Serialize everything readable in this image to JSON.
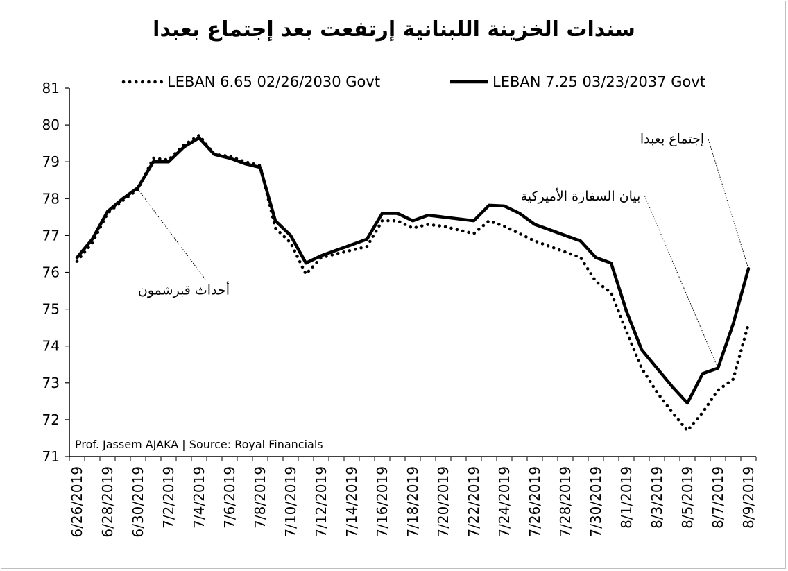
{
  "chart_data": {
    "type": "line",
    "title": "سندات الخزينة اللبنانية إرتفعت بعد إجتماع بعبدا",
    "source_note": "Prof. Jassem AJAKA | Source: Royal Financials",
    "ylim": [
      71,
      81
    ],
    "y_ticks": [
      "71",
      "72",
      "73",
      "74",
      "75",
      "76",
      "77",
      "78",
      "79",
      "80",
      "81"
    ],
    "x_tick_labels": [
      "6/26/2019",
      "6/28/2019",
      "6/30/2019",
      "7/2/2019",
      "7/4/2019",
      "7/6/2019",
      "7/8/2019",
      "7/10/2019",
      "7/12/2019",
      "7/14/2019",
      "7/16/2019",
      "7/18/2019",
      "7/20/2019",
      "7/22/2019",
      "7/24/2019",
      "7/26/2019",
      "7/28/2019",
      "7/30/2019",
      "8/1/2019",
      "8/3/2019",
      "8/5/2019",
      "8/7/2019",
      "8/9/2019"
    ],
    "x_start": "2019-06-26",
    "x_end": "2019-08-09",
    "legend_position": "top",
    "series": [
      {
        "name": "LEBAN 6.65 02/26/2030 Govt",
        "style": "dotted",
        "color": "#000000",
        "points": [
          [
            "2019-06-26",
            76.3
          ],
          [
            "2019-06-27",
            76.8
          ],
          [
            "2019-06-28",
            77.6
          ],
          [
            "2019-06-29",
            77.95
          ],
          [
            "2019-06-30",
            78.25
          ],
          [
            "2019-07-01",
            79.1
          ],
          [
            "2019-07-02",
            79.05
          ],
          [
            "2019-07-03",
            79.45
          ],
          [
            "2019-07-04",
            79.72
          ],
          [
            "2019-07-05",
            79.2
          ],
          [
            "2019-07-06",
            79.15
          ],
          [
            "2019-07-07",
            79.0
          ],
          [
            "2019-07-08",
            78.9
          ],
          [
            "2019-07-09",
            77.2
          ],
          [
            "2019-07-10",
            76.8
          ],
          [
            "2019-07-11",
            75.95
          ],
          [
            "2019-07-12",
            76.4
          ],
          [
            "2019-07-13",
            76.5
          ],
          [
            "2019-07-14",
            76.6
          ],
          [
            "2019-07-15",
            76.7
          ],
          [
            "2019-07-16",
            77.4
          ],
          [
            "2019-07-17",
            77.4
          ],
          [
            "2019-07-18",
            77.2
          ],
          [
            "2019-07-19",
            77.3
          ],
          [
            "2019-07-20",
            77.25
          ],
          [
            "2019-07-21",
            77.15
          ],
          [
            "2019-07-22",
            77.05
          ],
          [
            "2019-07-23",
            77.4
          ],
          [
            "2019-07-24",
            77.25
          ],
          [
            "2019-07-25",
            77.05
          ],
          [
            "2019-07-26",
            76.85
          ],
          [
            "2019-07-27",
            76.7
          ],
          [
            "2019-07-28",
            76.55
          ],
          [
            "2019-07-29",
            76.4
          ],
          [
            "2019-07-30",
            75.75
          ],
          [
            "2019-07-31",
            75.45
          ],
          [
            "2019-08-01",
            74.4
          ],
          [
            "2019-08-02",
            73.4
          ],
          [
            "2019-08-03",
            72.75
          ],
          [
            "2019-08-04",
            72.2
          ],
          [
            "2019-08-05",
            71.7
          ],
          [
            "2019-08-06",
            72.2
          ],
          [
            "2019-08-07",
            72.8
          ],
          [
            "2019-08-08",
            73.1
          ],
          [
            "2019-08-09",
            74.6
          ]
        ]
      },
      {
        "name": "LEBAN 7.25 03/23/2037 Govt",
        "style": "solid",
        "color": "#000000",
        "points": [
          [
            "2019-06-26",
            76.4
          ],
          [
            "2019-06-27",
            76.9
          ],
          [
            "2019-06-28",
            77.65
          ],
          [
            "2019-06-29",
            78.0
          ],
          [
            "2019-06-30",
            78.3
          ],
          [
            "2019-07-01",
            79.0
          ],
          [
            "2019-07-02",
            79.0
          ],
          [
            "2019-07-03",
            79.4
          ],
          [
            "2019-07-04",
            79.65
          ],
          [
            "2019-07-05",
            79.2
          ],
          [
            "2019-07-06",
            79.1
          ],
          [
            "2019-07-07",
            78.95
          ],
          [
            "2019-07-08",
            78.85
          ],
          [
            "2019-07-09",
            77.4
          ],
          [
            "2019-07-10",
            77.0
          ],
          [
            "2019-07-11",
            76.25
          ],
          [
            "2019-07-12",
            76.45
          ],
          [
            "2019-07-13",
            76.6
          ],
          [
            "2019-07-14",
            76.75
          ],
          [
            "2019-07-15",
            76.9
          ],
          [
            "2019-07-16",
            77.6
          ],
          [
            "2019-07-17",
            77.6
          ],
          [
            "2019-07-18",
            77.4
          ],
          [
            "2019-07-19",
            77.55
          ],
          [
            "2019-07-20",
            77.5
          ],
          [
            "2019-07-21",
            77.45
          ],
          [
            "2019-07-22",
            77.4
          ],
          [
            "2019-07-23",
            77.82
          ],
          [
            "2019-07-24",
            77.8
          ],
          [
            "2019-07-25",
            77.6
          ],
          [
            "2019-07-26",
            77.3
          ],
          [
            "2019-07-27",
            77.15
          ],
          [
            "2019-07-28",
            77.0
          ],
          [
            "2019-07-29",
            76.85
          ],
          [
            "2019-07-30",
            76.4
          ],
          [
            "2019-07-31",
            76.25
          ],
          [
            "2019-08-01",
            74.95
          ],
          [
            "2019-08-02",
            73.9
          ],
          [
            "2019-08-03",
            73.4
          ],
          [
            "2019-08-04",
            72.9
          ],
          [
            "2019-08-05",
            72.45
          ],
          [
            "2019-08-06",
            73.25
          ],
          [
            "2019-08-07",
            73.4
          ],
          [
            "2019-08-08",
            74.6
          ],
          [
            "2019-08-09",
            76.1
          ]
        ]
      }
    ],
    "annotations": [
      {
        "text": "أحداث قبرشمون",
        "date": "2019-06-30",
        "value": 78.25,
        "label_date": "2019-07-03",
        "label_value": 75.4
      },
      {
        "text": "بيان السفارة الأميركية",
        "date": "2019-08-07",
        "value": 73.4,
        "label_date": "2019-07-29",
        "label_value": 77.95
      },
      {
        "text": "إجتماع بعبدا",
        "date": "2019-08-09",
        "value": 76.1,
        "label_date": "2019-08-04",
        "label_value": 79.5
      }
    ]
  }
}
